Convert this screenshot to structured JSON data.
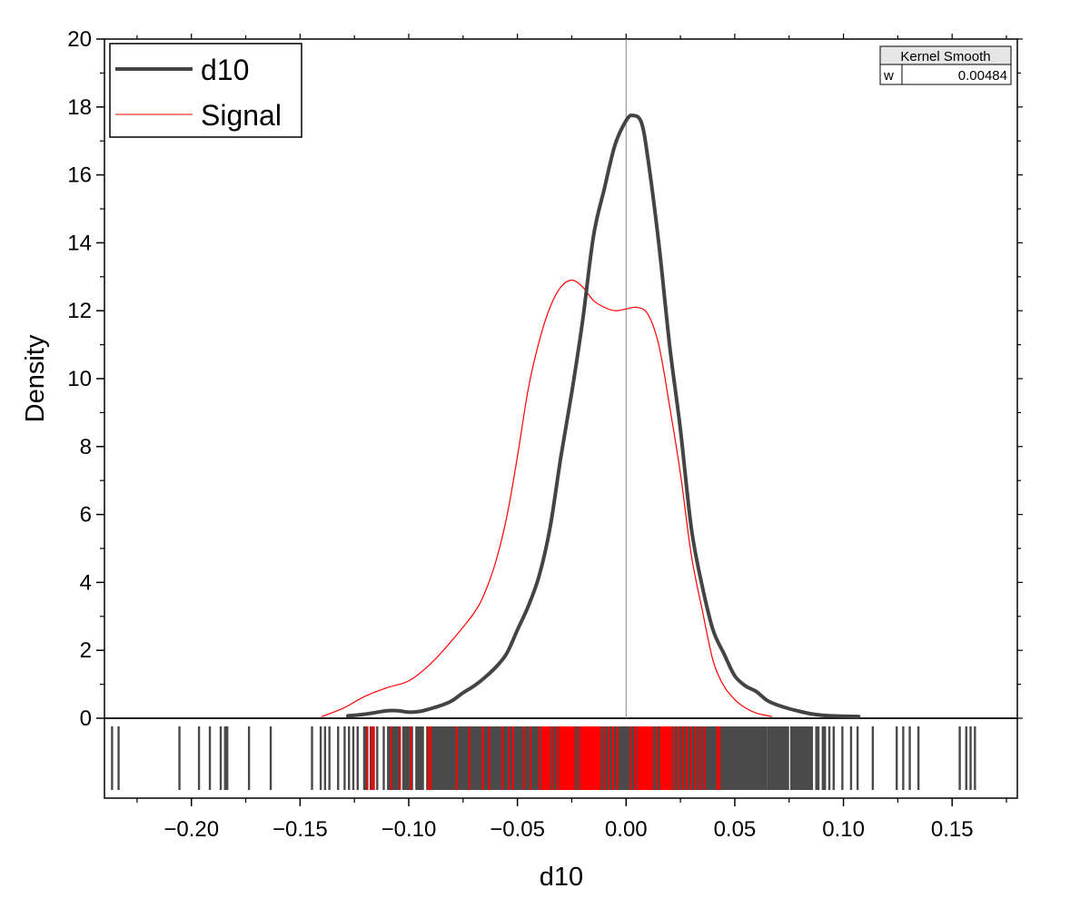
{
  "chart_data": {
    "type": "line",
    "xlabel": "d10",
    "ylabel": "Density",
    "xlim": [
      -0.24,
      0.18
    ],
    "ylim": [
      0,
      20
    ],
    "x_ticks": [
      -0.2,
      -0.15,
      -0.1,
      -0.05,
      0.0,
      0.05,
      0.1,
      0.15
    ],
    "x_tick_labels": [
      "−0.20",
      "−0.15",
      "−0.10",
      "−0.05",
      "0.00",
      "0.05",
      "0.10",
      "0.15"
    ],
    "y_ticks": [
      0,
      2,
      4,
      6,
      8,
      10,
      12,
      14,
      16,
      18,
      20
    ],
    "y_tick_labels": [
      "0",
      "2",
      "4",
      "6",
      "8",
      "10",
      "12",
      "14",
      "16",
      "18",
      "20"
    ],
    "reference_line_x": 0.0,
    "legend": {
      "placement": "top-left"
    },
    "kernel_box": {
      "title": "Kernel Smooth",
      "param_label": "w",
      "param_value": "0.00484"
    },
    "series": [
      {
        "name": "d10",
        "color": "#444444",
        "x": [
          -0.128,
          -0.12,
          -0.11,
          -0.105,
          -0.1,
          -0.095,
          -0.09,
          -0.085,
          -0.08,
          -0.075,
          -0.07,
          -0.065,
          -0.06,
          -0.055,
          -0.05,
          -0.045,
          -0.04,
          -0.035,
          -0.03,
          -0.025,
          -0.02,
          -0.015,
          -0.01,
          -0.005,
          0.0,
          0.003,
          0.007,
          0.01,
          0.015,
          0.02,
          0.025,
          0.03,
          0.035,
          0.04,
          0.045,
          0.05,
          0.055,
          0.06,
          0.065,
          0.07,
          0.075,
          0.08,
          0.085,
          0.09,
          0.095,
          0.1,
          0.107
        ],
        "y": [
          0.07,
          0.12,
          0.22,
          0.22,
          0.18,
          0.2,
          0.28,
          0.38,
          0.52,
          0.75,
          0.95,
          1.2,
          1.5,
          1.9,
          2.6,
          3.3,
          4.2,
          5.6,
          7.7,
          9.6,
          11.7,
          14.2,
          15.6,
          16.9,
          17.6,
          17.75,
          17.55,
          16.5,
          14.0,
          11.0,
          8.5,
          5.6,
          3.9,
          2.6,
          1.9,
          1.25,
          0.95,
          0.78,
          0.52,
          0.38,
          0.28,
          0.2,
          0.13,
          0.09,
          0.07,
          0.06,
          0.05
        ]
      },
      {
        "name": "Signal",
        "color": "#ff0000",
        "x": [
          -0.14,
          -0.13,
          -0.12,
          -0.11,
          -0.1,
          -0.09,
          -0.08,
          -0.07,
          -0.065,
          -0.06,
          -0.055,
          -0.05,
          -0.045,
          -0.04,
          -0.035,
          -0.03,
          -0.025,
          -0.02,
          -0.015,
          -0.01,
          -0.005,
          0.0,
          0.005,
          0.01,
          0.015,
          0.02,
          0.025,
          0.03,
          0.035,
          0.04,
          0.045,
          0.05,
          0.055,
          0.06,
          0.067
        ],
        "y": [
          0.05,
          0.3,
          0.65,
          0.9,
          1.1,
          1.6,
          2.3,
          3.1,
          3.7,
          4.6,
          5.9,
          7.7,
          9.7,
          11.1,
          12.1,
          12.7,
          12.9,
          12.7,
          12.3,
          12.1,
          12.0,
          12.05,
          12.1,
          11.9,
          11.0,
          9.2,
          7.2,
          4.8,
          3.2,
          1.7,
          0.95,
          0.55,
          0.3,
          0.15,
          0.05
        ]
      }
    ],
    "rug": {
      "d10_segments": [
        [
          -0.237,
          -0.236
        ],
        [
          -0.234,
          -0.233
        ],
        [
          -0.206,
          -0.205
        ],
        [
          -0.197,
          -0.196
        ],
        [
          -0.192,
          -0.191
        ],
        [
          -0.187,
          -0.186
        ],
        [
          -0.185,
          -0.184
        ],
        [
          -0.184,
          -0.183
        ],
        [
          -0.174,
          -0.173
        ],
        [
          -0.164,
          -0.163
        ],
        [
          -0.145,
          -0.144
        ],
        [
          -0.141,
          -0.14
        ],
        [
          -0.139,
          -0.138
        ],
        [
          -0.137,
          -0.136
        ],
        [
          -0.133,
          -0.132
        ],
        [
          -0.13,
          -0.129
        ],
        [
          -0.128,
          -0.127
        ],
        [
          -0.126,
          -0.125
        ],
        [
          -0.124,
          -0.123
        ],
        [
          -0.121,
          -0.119
        ],
        [
          -0.118,
          -0.116
        ],
        [
          -0.115,
          -0.114
        ],
        [
          -0.112,
          -0.111
        ],
        [
          -0.11,
          -0.104
        ],
        [
          -0.103,
          -0.098
        ],
        [
          -0.097,
          -0.093
        ],
        [
          -0.092,
          0.065
        ],
        [
          0.065,
          0.075
        ],
        [
          0.0755,
          0.086
        ],
        [
          0.087,
          0.089
        ],
        [
          0.09,
          0.092
        ],
        [
          0.093,
          0.094
        ],
        [
          0.095,
          0.096
        ],
        [
          0.099,
          0.1
        ],
        [
          0.103,
          0.104
        ],
        [
          0.106,
          0.107
        ],
        [
          0.113,
          0.114
        ],
        [
          0.124,
          0.125
        ],
        [
          0.127,
          0.128
        ],
        [
          0.13,
          0.131
        ],
        [
          0.134,
          0.135
        ],
        [
          0.153,
          0.154
        ],
        [
          0.156,
          0.157
        ],
        [
          0.158,
          0.159
        ],
        [
          0.16,
          0.161
        ]
      ],
      "signal_ticks": [
        -0.119,
        -0.117,
        -0.116,
        -0.108,
        -0.104,
        -0.099,
        -0.091,
        -0.09,
        -0.078,
        -0.072,
        -0.066,
        -0.063,
        -0.057,
        -0.054,
        -0.052,
        -0.047,
        -0.044,
        -0.04,
        -0.038,
        -0.036,
        -0.034,
        -0.032,
        -0.03,
        -0.028,
        -0.026,
        -0.024,
        -0.022,
        -0.02,
        -0.018,
        -0.016,
        -0.014,
        -0.012,
        -0.01,
        -0.008,
        -0.006,
        -0.004,
        0.002,
        0.004,
        0.006,
        0.008,
        0.01,
        0.012,
        0.014,
        0.016,
        0.018,
        0.02,
        0.022,
        0.024,
        0.026,
        0.028,
        0.03,
        0.032,
        0.034,
        0.036,
        0.042,
        0.043
      ],
      "signal_dense": [
        [
          -0.039,
          -0.035
        ],
        [
          -0.031,
          -0.024
        ],
        [
          -0.021,
          -0.012
        ],
        [
          0.005,
          0.012
        ],
        [
          0.016,
          0.021
        ]
      ]
    }
  }
}
